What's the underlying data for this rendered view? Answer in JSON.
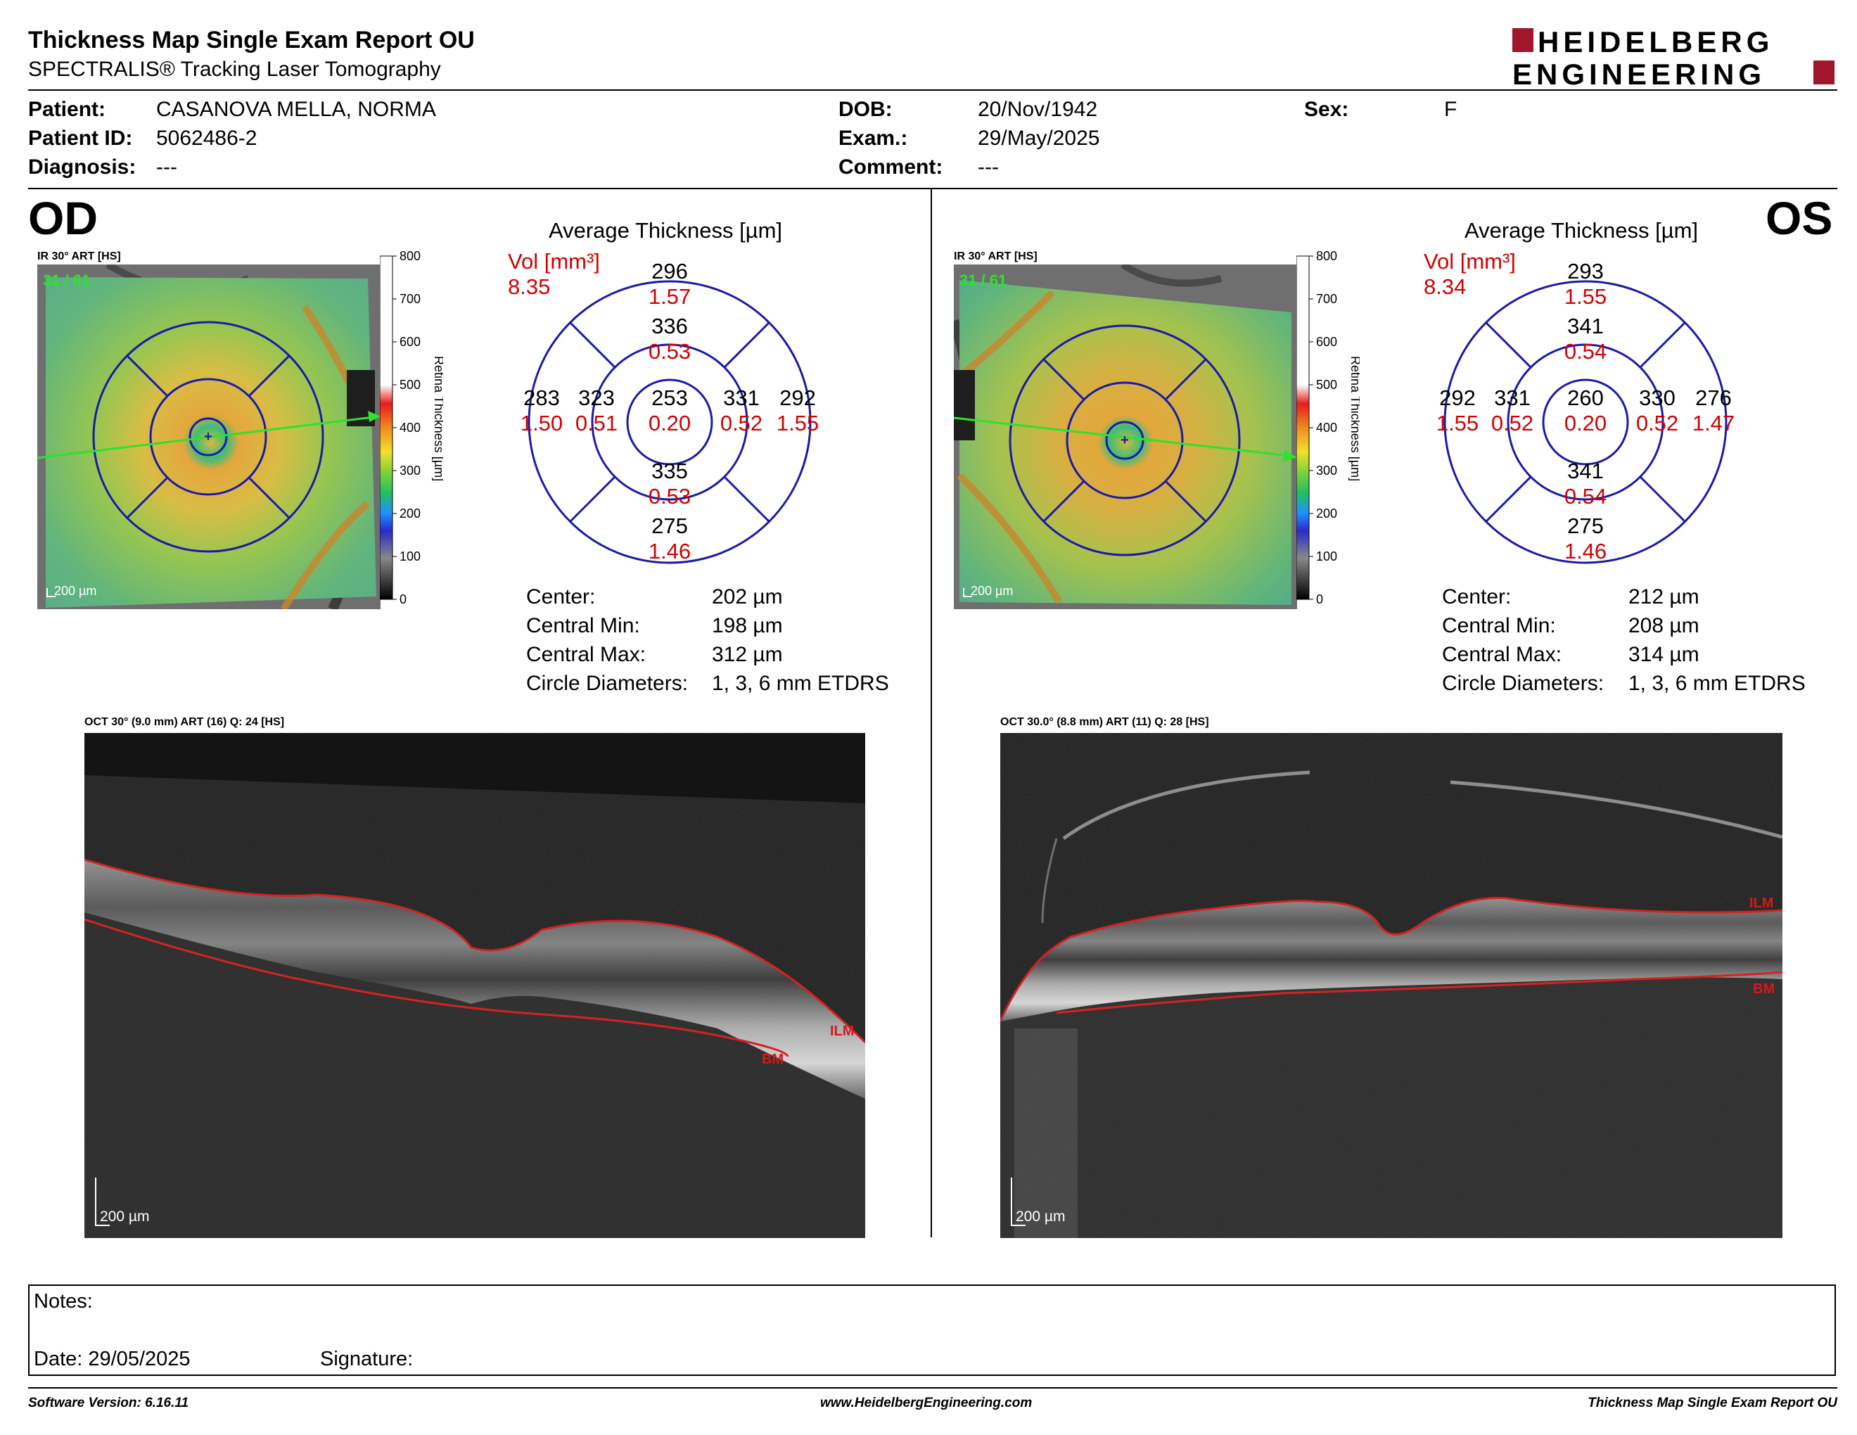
{
  "header": {
    "title": "Thickness Map Single Exam Report OU",
    "subtitle": "SPECTRALIS® Tracking Laser Tomography",
    "logo_top": "HEIDELBERG",
    "logo_bottom": "ENGINEERING",
    "logo_color": "#a0162a"
  },
  "patient": {
    "patient_label": "Patient:",
    "patient_value": "CASANOVA MELLA, NORMA",
    "id_label": "Patient ID:",
    "id_value": "5062486-2",
    "diagnosis_label": "Diagnosis:",
    "diagnosis_value": "---",
    "dob_label": "DOB:",
    "dob_value": "20/Nov/1942",
    "exam_label": "Exam.:",
    "exam_value": "29/May/2025",
    "comment_label": "Comment:",
    "comment_value": "---",
    "sex_label": "Sex:",
    "sex_value": "F"
  },
  "scale": {
    "ticks": [
      "800",
      "700",
      "600",
      "500",
      "400",
      "300",
      "200",
      "100",
      "0"
    ],
    "label": "Retina  Thickness [µm]"
  },
  "od": {
    "eye": "OD",
    "ir_title": "IR 30° ART [HS]",
    "frames": "31 / 61",
    "scalebar": "200 µm",
    "avg_title": "Average Thickness [µm]",
    "vol_label": "Vol [mm³]",
    "vol_value": "8.35",
    "sectors": {
      "outer_top": "296",
      "outer_top_vol": "1.57",
      "inner_top": "336",
      "inner_top_vol": "0.53",
      "outer_left": "283",
      "outer_left_vol": "1.50",
      "inner_left": "323",
      "inner_left_vol": "0.51",
      "center": "253",
      "center_vol": "0.20",
      "inner_right": "331",
      "inner_right_vol": "0.52",
      "outer_right": "292",
      "outer_right_vol": "1.55",
      "inner_bottom": "335",
      "inner_bottom_vol": "0.53",
      "outer_bottom": "275",
      "outer_bottom_vol": "1.46"
    },
    "stats": {
      "center_label": "Center:",
      "center_value": "202 µm",
      "min_label": "Central Min:",
      "min_value": "198 µm",
      "max_label": "Central Max:",
      "max_value": "312 µm",
      "diam_label": "Circle Diameters:",
      "diam_value": "1, 3, 6 mm ETDRS"
    },
    "oct_title": "OCT 30° (9.0 mm) ART (16) Q: 24 [HS]",
    "oct_scalebar": "200 µm",
    "ilm": "ILM",
    "bm": "BM"
  },
  "os": {
    "eye": "OS",
    "ir_title": "IR 30° ART [HS]",
    "frames": "31 / 61",
    "scalebar": "200 µm",
    "avg_title": "Average Thickness [µm]",
    "vol_label": "Vol [mm³]",
    "vol_value": "8.34",
    "sectors": {
      "outer_top": "293",
      "outer_top_vol": "1.55",
      "inner_top": "341",
      "inner_top_vol": "0.54",
      "outer_left": "292",
      "outer_left_vol": "1.55",
      "inner_left": "331",
      "inner_left_vol": "0.52",
      "center": "260",
      "center_vol": "0.20",
      "inner_right": "330",
      "inner_right_vol": "0.52",
      "outer_right": "276",
      "outer_right_vol": "1.47",
      "inner_bottom": "341",
      "inner_bottom_vol": "0.54",
      "outer_bottom": "275",
      "outer_bottom_vol": "1.46"
    },
    "stats": {
      "center_label": "Center:",
      "center_value": "212 µm",
      "min_label": "Central Min:",
      "min_value": "208 µm",
      "max_label": "Central Max:",
      "max_value": "314 µm",
      "diam_label": "Circle Diameters:",
      "diam_value": "1, 3, 6 mm ETDRS"
    },
    "oct_title": "OCT 30.0° (8.8 mm) ART (11) Q: 28 [HS]",
    "oct_scalebar": "200 µm",
    "ilm": "ILM",
    "bm": "BM"
  },
  "notes": {
    "notes_label": "Notes:",
    "date_label": "Date: 29/05/2025",
    "signature_label": "Signature:"
  },
  "footer": {
    "software": "Software Version: 6.16.11",
    "website": "www.HeidelbergEngineering.com",
    "report": "Thickness Map Single Exam Report OU"
  }
}
